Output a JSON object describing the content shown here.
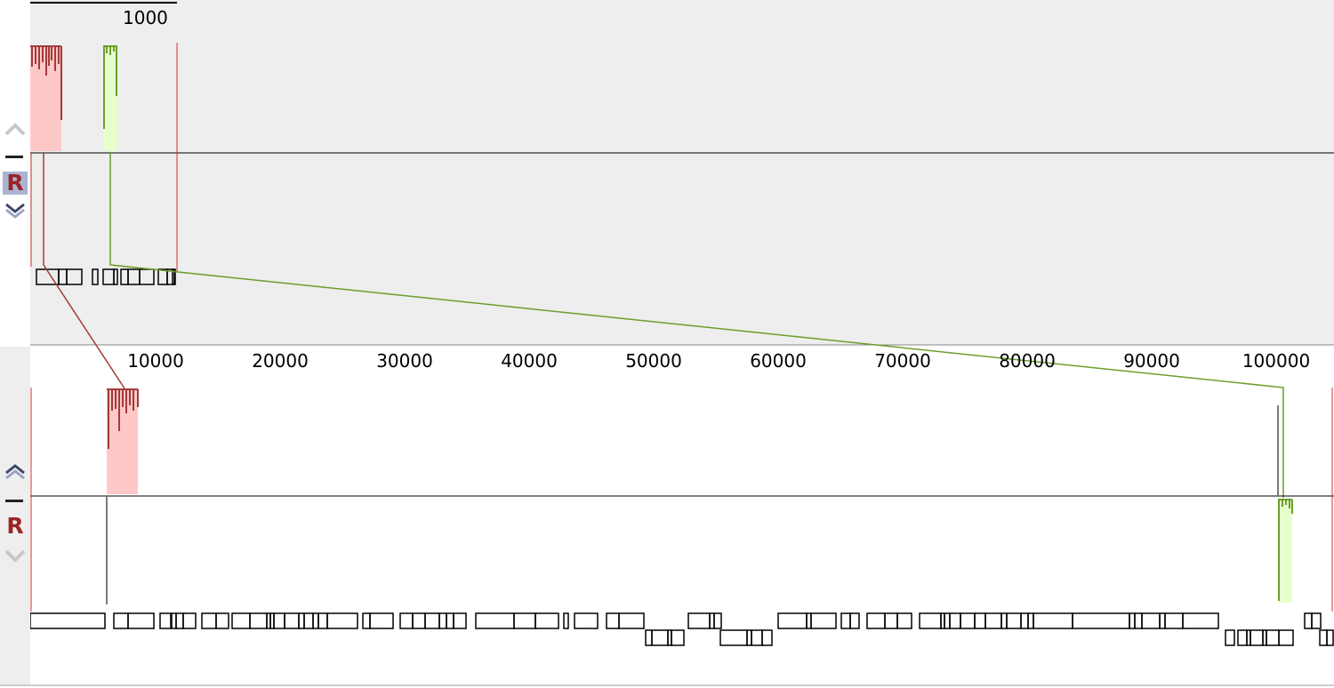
{
  "top_panel": {
    "scale_label": "1000",
    "controls": {
      "up_icon": "chevron-up-icon",
      "minimize_icon": "minus-icon",
      "reverse_label": "R",
      "down_icon": "chevron-down-icon"
    }
  },
  "bottom_panel": {
    "controls": {
      "up_icon": "chevron-up-icon",
      "minimize_icon": "minus-icon",
      "reverse_label": "R",
      "down_icon": "chevron-down-icon"
    }
  },
  "ruler": {
    "ticks": [
      "10000",
      "20000",
      "30000",
      "40000",
      "50000",
      "60000",
      "70000",
      "80000",
      "90000",
      "100000"
    ]
  },
  "colors": {
    "red_block": "#ffc8c8",
    "red_line": "#a33a3a",
    "green_block": "#e6ffcc",
    "green_line": "#6b9e2c",
    "top_bg": "#eeeeee",
    "gray_line": "#7a7a7a"
  }
}
